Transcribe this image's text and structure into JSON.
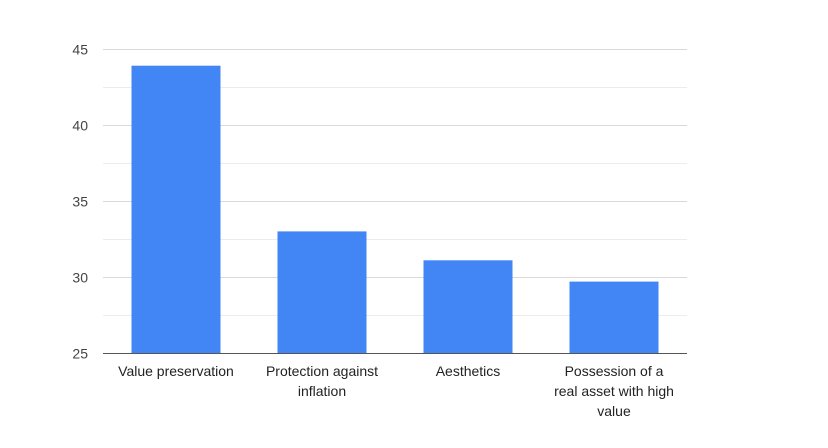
{
  "chart_data": {
    "type": "bar",
    "title": "",
    "xlabel": "",
    "ylabel": "",
    "categories": [
      [
        "Value preservation"
      ],
      [
        "Protection against",
        "inflation"
      ],
      [
        "Aesthetics"
      ],
      [
        "Possession of a",
        "real asset with high",
        "value"
      ]
    ],
    "values": [
      43.9,
      33.0,
      31.1,
      29.7
    ],
    "ylim": [
      25,
      45
    ],
    "yticks": [
      25,
      30,
      35,
      40,
      45
    ],
    "minor_gridlines": true,
    "legend": "none",
    "colors": {
      "bar": "#4285f4",
      "major_grid": "#d9d9d9",
      "minor_grid": "#ececec",
      "axis_line": "#555555",
      "tick_text": "#444444",
      "category_text": "#222222"
    }
  }
}
